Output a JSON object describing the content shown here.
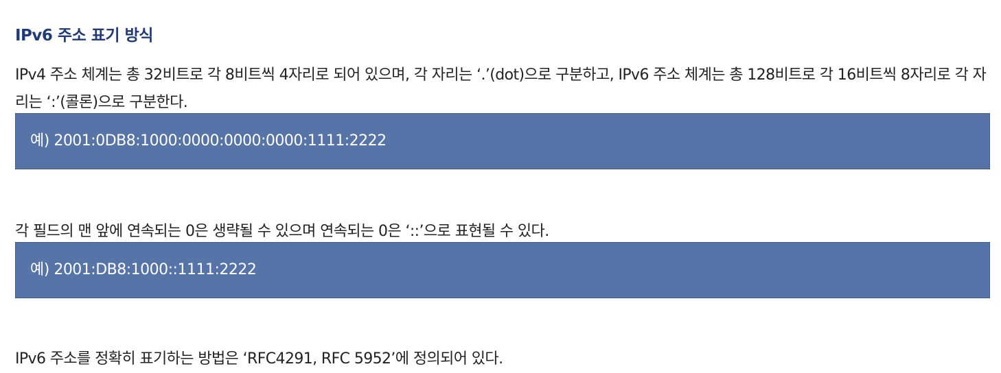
{
  "section": {
    "title": "IPv6 주소 표기 방식"
  },
  "paragraphs": {
    "intro": "IPv4 주소 체계는 총 32비트로 각 8비트씩 4자리로 되어 있으며, 각 자리는 ‘.’(dot)으로 구분하고, IPv6 주소 체계는 총 128비트로 각 16비트씩 8자리로 각 자리는 ‘:’(콜론)으로 구분한다.",
    "compression": "각 필드의 맨 앞에 연속되는 0은 생략될 수 있으며 연속되는 0은 ‘::’으로 표현될 수 있다.",
    "standard": "IPv6 주소를 정확히 표기하는 방법은 ‘RFC4291, RFC 5952’에 정의되어 있다."
  },
  "examples": {
    "full": "예) 2001:0DB8:1000:0000:0000:0000:1111:2222",
    "compressed": "예) 2001:DB8:1000::1111:2222"
  },
  "colors": {
    "title": "#1f3b7a",
    "example_background": "#5674a8",
    "example_text": "#ffffff",
    "body_text": "#222222"
  }
}
